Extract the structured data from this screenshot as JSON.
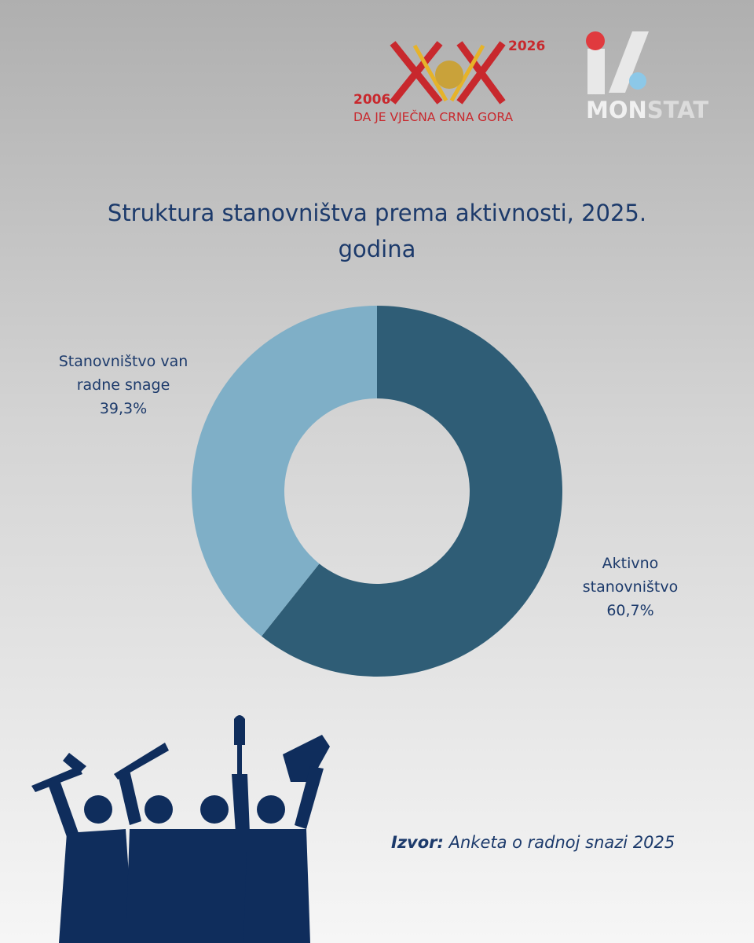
{
  "header": {
    "logo_year_start": "2006",
    "logo_year_end": "2026",
    "logo_motto": "DA JE VJEČNA CRNA GORA",
    "monstat_mon": "MON",
    "monstat_stat": "STAT"
  },
  "chart_data": {
    "type": "pie",
    "donut": true,
    "title": "Struktura stanovništva prema aktivnosti, 2025. godina",
    "categories": [
      "Aktivno stanovništvo",
      "Stanovništvo van radne snage"
    ],
    "values": [
      60.7,
      39.3
    ],
    "value_labels": [
      "60,7%",
      "39,3%"
    ],
    "colors": [
      "#2f5d76",
      "#7fafc7"
    ]
  },
  "source": {
    "label": "Izvor:",
    "text": "Anketa o radnoj snazi 2025"
  }
}
